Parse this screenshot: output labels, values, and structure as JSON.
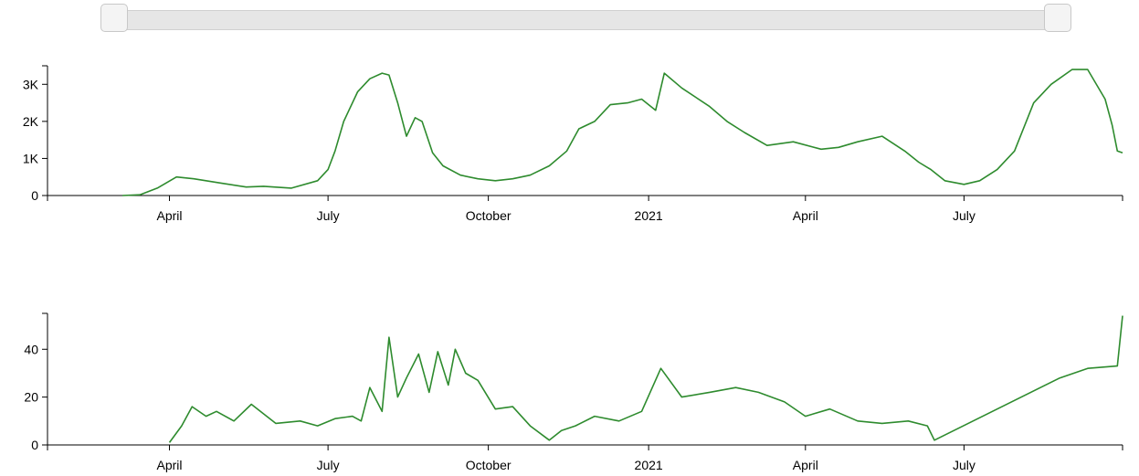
{
  "slider": {
    "range_start": "2020-01-22",
    "range_end": "2021-09-30"
  },
  "line_color": "#2e8b2e",
  "chart_data": [
    {
      "type": "line",
      "title": "",
      "xlabel": "",
      "ylabel": "",
      "x_domain": [
        "2020-01-22",
        "2021-09-30"
      ],
      "ylim": [
        0,
        3500
      ],
      "y_ticks": [
        0,
        1000,
        2000,
        3000
      ],
      "y_tick_labels": [
        "0",
        "1K",
        "2K",
        "3K"
      ],
      "x_ticks": [
        "2020-04-01",
        "2020-07-01",
        "2020-10-01",
        "2021-01-01",
        "2021-04-01",
        "2021-07-01"
      ],
      "x_tick_labels": [
        "April",
        "July",
        "October",
        "2021",
        "April",
        "July"
      ],
      "series": [
        {
          "x": [
            "2020-03-05",
            "2020-03-15",
            "2020-03-25",
            "2020-04-05",
            "2020-04-15",
            "2020-05-01",
            "2020-05-15",
            "2020-05-25",
            "2020-06-10",
            "2020-06-25",
            "2020-07-01",
            "2020-07-05",
            "2020-07-10",
            "2020-07-18",
            "2020-07-25",
            "2020-08-01",
            "2020-08-05",
            "2020-08-10",
            "2020-08-15",
            "2020-08-20",
            "2020-08-24",
            "2020-08-30",
            "2020-09-05",
            "2020-09-15",
            "2020-09-25",
            "2020-10-05",
            "2020-10-15",
            "2020-10-25",
            "2020-11-05",
            "2020-11-15",
            "2020-11-22",
            "2020-12-01",
            "2020-12-10",
            "2020-12-20",
            "2020-12-28",
            "2021-01-05",
            "2021-01-10",
            "2021-01-20",
            "2021-02-05",
            "2021-02-15",
            "2021-02-25",
            "2021-03-10",
            "2021-03-25",
            "2021-04-10",
            "2021-04-20",
            "2021-05-01",
            "2021-05-15",
            "2021-05-28",
            "2021-06-05",
            "2021-06-12",
            "2021-06-20",
            "2021-07-01",
            "2021-07-10",
            "2021-07-20",
            "2021-07-30",
            "2021-08-10",
            "2021-08-20",
            "2021-09-01",
            "2021-09-10",
            "2021-09-20",
            "2021-09-24",
            "2021-09-27",
            "2021-09-30"
          ],
          "y": [
            0,
            20,
            200,
            500,
            450,
            330,
            230,
            250,
            200,
            400,
            700,
            1200,
            2000,
            2800,
            3150,
            3300,
            3250,
            2500,
            1600,
            2100,
            2000,
            1150,
            800,
            550,
            450,
            400,
            450,
            550,
            800,
            1200,
            1800,
            2000,
            2450,
            2500,
            2600,
            2300,
            3300,
            2900,
            2400,
            2000,
            1700,
            1350,
            1450,
            1250,
            1300,
            1450,
            1600,
            1200,
            900,
            700,
            400,
            300,
            400,
            700,
            1200,
            2500,
            3000,
            3400,
            3400,
            2600,
            1900,
            1200,
            1150
          ]
        }
      ]
    },
    {
      "type": "line",
      "title": "",
      "xlabel": "",
      "ylabel": "",
      "x_domain": [
        "2020-01-22",
        "2021-09-30"
      ],
      "ylim": [
        0,
        55
      ],
      "y_ticks": [
        0,
        20,
        40
      ],
      "y_tick_labels": [
        "0",
        "20",
        "40"
      ],
      "x_ticks": [
        "2020-04-01",
        "2020-07-01",
        "2020-10-01",
        "2021-01-01",
        "2021-04-01",
        "2021-07-01"
      ],
      "x_tick_labels": [
        "April",
        "July",
        "October",
        "2021",
        "April",
        "July"
      ],
      "series": [
        {
          "x": [
            "2020-04-01",
            "2020-04-08",
            "2020-04-14",
            "2020-04-22",
            "2020-04-28",
            "2020-05-08",
            "2020-05-18",
            "2020-06-01",
            "2020-06-15",
            "2020-06-25",
            "2020-07-05",
            "2020-07-15",
            "2020-07-20",
            "2020-07-25",
            "2020-08-01",
            "2020-08-05",
            "2020-08-10",
            "2020-08-15",
            "2020-08-22",
            "2020-08-28",
            "2020-09-02",
            "2020-09-08",
            "2020-09-12",
            "2020-09-18",
            "2020-09-25",
            "2020-10-05",
            "2020-10-15",
            "2020-10-25",
            "2020-11-05",
            "2020-11-12",
            "2020-11-20",
            "2020-12-01",
            "2020-12-15",
            "2020-12-28",
            "2021-01-08",
            "2021-01-20",
            "2021-02-05",
            "2021-02-20",
            "2021-03-05",
            "2021-03-20",
            "2021-04-01",
            "2021-04-15",
            "2021-05-01",
            "2021-05-15",
            "2021-05-30",
            "2021-06-10",
            "2021-06-14",
            "2021-08-25",
            "2021-09-10",
            "2021-09-27",
            "2021-09-30"
          ],
          "y": [
            1,
            8,
            16,
            12,
            14,
            10,
            17,
            9,
            10,
            8,
            11,
            12,
            10,
            24,
            14,
            45,
            20,
            28,
            38,
            22,
            39,
            25,
            40,
            30,
            27,
            15,
            16,
            8,
            2,
            6,
            8,
            12,
            10,
            14,
            32,
            20,
            22,
            24,
            22,
            18,
            12,
            15,
            10,
            9,
            10,
            8,
            2,
            28,
            32,
            33,
            54
          ]
        }
      ]
    }
  ]
}
